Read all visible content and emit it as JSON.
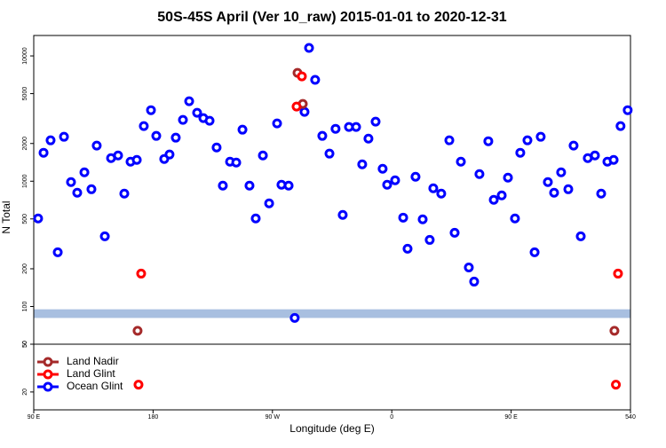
{
  "chart_data": [
    {
      "type": "scatter",
      "title": "50S-45S April (Ver 10_raw)   2015-01-01 to 2020-12-31",
      "ylabel": "N Total",
      "log_y": true,
      "ylim": [
        50,
        14560
      ],
      "yticks": [
        50,
        100,
        200,
        500,
        1000,
        2000,
        5000,
        10000
      ],
      "bands": [
        [
          81,
          95
        ]
      ],
      "band_color": "#a8bfe0",
      "series": [
        {
          "name": "Ocean Glint",
          "color": "#0000ff",
          "x": [
            93.3,
            97.4,
            102.7,
            108.1,
            112.8,
            118.1,
            122.8,
            128.2,
            133.5,
            137.5,
            143.6,
            148.3,
            153.6,
            158.3,
            163.0,
            167.7,
            173.0,
            178.4,
            182.4,
            188.4,
            192.4,
            197.1,
            202.5,
            207.2,
            213.2,
            217.9,
            222.6,
            227.9,
            232.6,
            238.0,
            242.7,
            247.4,
            252.7,
            257.4,
            262.8,
            267.5,
            273.5,
            276.8,
            282.2,
            286.8,
            294.2,
            297.6,
            302.2,
            307.6,
            313.0,
            317.6,
            323.0,
            327.7,
            333.1,
            337.7,
            342.4,
            347.8,
            353.1,
            356.5,
            362.5,
            368.6,
            371.9,
            377.9,
            383.3,
            388.6,
            391.3,
            397.3,
            403.4,
            407.4,
            412.1,
            418.1,
            422.1,
            426.1,
            432.8,
            436.9,
            442.9,
            447.6,
            452.9,
            456.9,
            462.3,
            467.7,
            472.3,
            477.7,
            482.4,
            487.7,
            493.1,
            497.1,
            502.5,
            507.8,
            513.2,
            517.9,
            522.6,
            527.3,
            532.5,
            537.9
          ],
          "values": [
            504,
            1687,
            2120,
            271,
            2263,
            984,
            809,
            1178,
            863,
            1923,
            363,
            1529,
            1606,
            796,
            1432,
            1480,
            2754,
            3690,
            2300,
            1505,
            1633,
            2226,
            3085,
            4350,
            3518,
            3190,
            3036,
            1860,
            922,
            1432,
            1409,
            2578,
            922,
            504,
            1606,
            665,
            2891,
            937,
            922,
            81,
            3575,
            11580,
            6440,
            2300,
            1660,
            2620,
            538,
            2710,
            2710,
            1364,
            2189,
            2987,
            1257,
            937,
            1017,
            512,
            289,
            1085,
            496,
            340,
            878,
            796,
            2120,
            388,
            1432,
            205,
            158,
            1140,
            2085,
            710,
            770,
            1067,
            504,
            1687,
            2120,
            271,
            2263,
            984,
            809,
            1178,
            863,
            1923,
            363,
            1529,
            1606,
            796,
            1432,
            1480,
            2754,
            3690
          ]
        },
        {
          "name": "Land Nadir",
          "color": "#a52a2a",
          "x": [
            168.3,
            288.9,
            292.9,
            527.9
          ],
          "values": [
            64,
            7330,
            4140,
            64
          ]
        },
        {
          "name": "Land Glint",
          "color": "#ff0000",
          "x": [
            171.0,
            288.2,
            292.2,
            530.6
          ],
          "values": [
            183,
            3940,
            6870,
            183
          ]
        }
      ]
    },
    {
      "type": "scatter",
      "log_y": true,
      "xlabel": "Longitude (deg E)",
      "xlim": [
        90,
        540
      ],
      "xticks": [
        {
          "value": 90,
          "label": "90 E"
        },
        180,
        {
          "value": 270,
          "label": "90 W"
        },
        {
          "value": 360,
          "label": "0"
        },
        {
          "value": 450,
          "label": "90 E"
        },
        540
      ],
      "ylim": [
        14.2,
        50
      ],
      "yticks": [
        20,
        50
      ],
      "legend": "bottom-left",
      "series": [
        {
          "color": "#ff0000",
          "x": [
            169.0,
            529.0
          ],
          "values": [
            23,
            23
          ]
        }
      ]
    }
  ]
}
